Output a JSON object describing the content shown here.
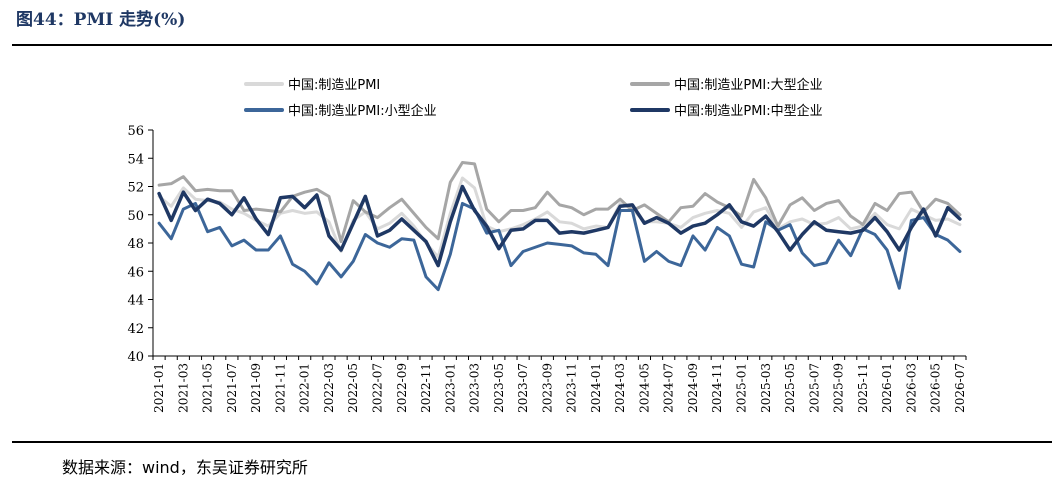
{
  "header": {
    "title": "图44：PMI 走势(%)"
  },
  "footer": {
    "source": "数据来源：wind，东吴证券研究所"
  },
  "chart_data": {
    "type": "line",
    "title": "PMI 走势(%)",
    "xlabel": "",
    "ylabel": "",
    "ylim": [
      40,
      56
    ],
    "yticks": [
      40,
      42,
      44,
      46,
      48,
      50,
      52,
      54,
      56
    ],
    "grid": false,
    "legend_position": "top",
    "x": [
      "2021-01",
      "2021-02",
      "2021-03",
      "2021-04",
      "2021-05",
      "2021-06",
      "2021-07",
      "2021-08",
      "2021-09",
      "2021-10",
      "2021-11",
      "2021-12",
      "2022-01",
      "2022-02",
      "2022-03",
      "2022-04",
      "2022-05",
      "2022-06",
      "2022-07",
      "2022-08",
      "2022-09",
      "2022-10",
      "2022-11",
      "2022-12",
      "2023-01",
      "2023-02",
      "2023-03",
      "2023-04",
      "2023-05",
      "2023-06",
      "2023-07",
      "2023-08",
      "2023-09",
      "2023-10",
      "2023-11",
      "2023-12",
      "2024-01",
      "2024-02",
      "2024-03",
      "2024-04",
      "2024-05",
      "2024-06",
      "2024-07",
      "2024-08",
      "2024-09",
      "2024-10",
      "2024-11",
      "2024-12",
      "2025-01",
      "2025-02",
      "2025-03",
      "2025-04",
      "2025-05",
      "2025-06",
      "2025-07",
      "2025-08",
      "2025-09",
      "2025-10",
      "2025-11",
      "2025-12",
      "2026-01",
      "2026-02",
      "2026-03",
      "2026-04",
      "2026-05",
      "2026-06",
      "2026-07"
    ],
    "xtick_labels": [
      "2021-01",
      "2021-03",
      "2021-05",
      "2021-07",
      "2021-09",
      "2021-11",
      "2022-01",
      "2022-03",
      "2022-05",
      "2022-07",
      "2022-09",
      "2022-11",
      "2023-01",
      "2023-03",
      "2023-05",
      "2023-07",
      "2023-09",
      "2023-11",
      "2024-01",
      "2024-03",
      "2024-05",
      "2024-07",
      "2024-09",
      "2024-11",
      "2025-01",
      "2025-03",
      "2025-05",
      "2025-07",
      "2025-09",
      "2025-11",
      "2026-01",
      "2026-03",
      "2026-05",
      "2026-07"
    ],
    "series": [
      {
        "name": "中国:制造业PMI",
        "color": "#d9d9d9",
        "width": 3,
        "values": [
          51.3,
          50.6,
          51.9,
          51.1,
          51.0,
          50.9,
          50.4,
          50.1,
          49.6,
          49.2,
          50.1,
          50.3,
          50.1,
          50.2,
          49.5,
          47.4,
          49.6,
          50.2,
          49.0,
          49.4,
          50.1,
          49.2,
          48.0,
          47.0,
          50.1,
          52.6,
          51.9,
          49.2,
          48.8,
          49.0,
          49.3,
          49.7,
          50.2,
          49.5,
          49.4,
          49.0,
          49.2,
          49.1,
          50.8,
          50.4,
          49.5,
          49.5,
          49.4,
          49.1,
          49.8,
          50.1,
          50.3,
          50.1,
          49.1,
          50.2,
          50.5,
          49.0,
          49.5,
          49.7,
          49.3,
          49.4,
          49.8,
          49.0,
          49.2,
          50.1,
          49.3,
          49.0,
          50.4,
          50.0,
          49.6,
          49.7,
          49.3
        ]
      },
      {
        "name": "中国:制造业PMI:大型企业",
        "color": "#a6a6a6",
        "width": 3,
        "values": [
          52.1,
          52.2,
          52.7,
          51.7,
          51.8,
          51.7,
          51.7,
          50.3,
          50.4,
          50.3,
          50.2,
          51.3,
          51.6,
          51.8,
          51.3,
          48.1,
          51.0,
          50.2,
          49.8,
          50.5,
          51.1,
          50.1,
          49.1,
          48.3,
          52.3,
          53.7,
          53.6,
          50.4,
          49.5,
          50.3,
          50.3,
          50.5,
          51.6,
          50.7,
          50.5,
          50.0,
          50.4,
          50.4,
          51.1,
          50.3,
          50.7,
          50.1,
          49.5,
          50.5,
          50.6,
          51.5,
          50.9,
          50.5,
          49.9,
          52.5,
          51.2,
          49.2,
          50.7,
          51.2,
          50.3,
          50.8,
          51.0,
          49.9,
          49.3,
          50.8,
          50.3,
          51.5,
          51.6,
          50.2,
          51.1,
          50.8,
          50.0
        ]
      },
      {
        "name": "中国:制造业PMI:小型企业",
        "color": "#3c6699",
        "width": 3,
        "values": [
          49.4,
          48.3,
          50.4,
          50.8,
          48.8,
          49.1,
          47.8,
          48.2,
          47.5,
          47.5,
          48.5,
          46.5,
          46.0,
          45.1,
          46.6,
          45.6,
          46.7,
          48.6,
          48.0,
          47.7,
          48.3,
          48.2,
          45.6,
          44.7,
          47.2,
          50.8,
          50.4,
          48.7,
          48.9,
          46.4,
          47.4,
          47.7,
          48.0,
          47.9,
          47.8,
          47.3,
          47.2,
          46.4,
          50.3,
          50.3,
          46.7,
          47.4,
          46.7,
          46.4,
          48.5,
          47.5,
          49.1,
          48.5,
          46.5,
          46.3,
          49.5,
          48.9,
          49.3,
          47.3,
          46.4,
          46.6,
          48.2,
          47.1,
          49.0,
          48.6,
          47.5,
          44.8,
          49.6,
          49.8,
          48.6,
          48.2,
          47.4
        ]
      },
      {
        "name": "中国:制造业PMI:中型企业",
        "color": "#1f3864",
        "width": 3.5,
        "values": [
          51.5,
          49.6,
          51.6,
          50.3,
          51.1,
          50.8,
          50.0,
          51.2,
          49.7,
          48.6,
          51.2,
          51.3,
          50.5,
          51.4,
          48.5,
          47.5,
          49.4,
          51.3,
          48.5,
          48.9,
          49.7,
          48.9,
          48.1,
          46.4,
          49.5,
          52.0,
          50.3,
          49.2,
          47.6,
          48.9,
          49.0,
          49.6,
          49.6,
          48.7,
          48.8,
          48.7,
          48.9,
          49.1,
          50.6,
          50.7,
          49.4,
          49.8,
          49.4,
          48.7,
          49.2,
          49.4,
          50.0,
          50.7,
          49.5,
          49.2,
          49.9,
          48.8,
          47.5,
          48.6,
          49.5,
          48.9,
          48.8,
          48.7,
          48.9,
          49.8,
          48.8,
          47.5,
          49.1,
          50.4,
          48.5,
          50.5,
          49.7
        ]
      }
    ]
  }
}
